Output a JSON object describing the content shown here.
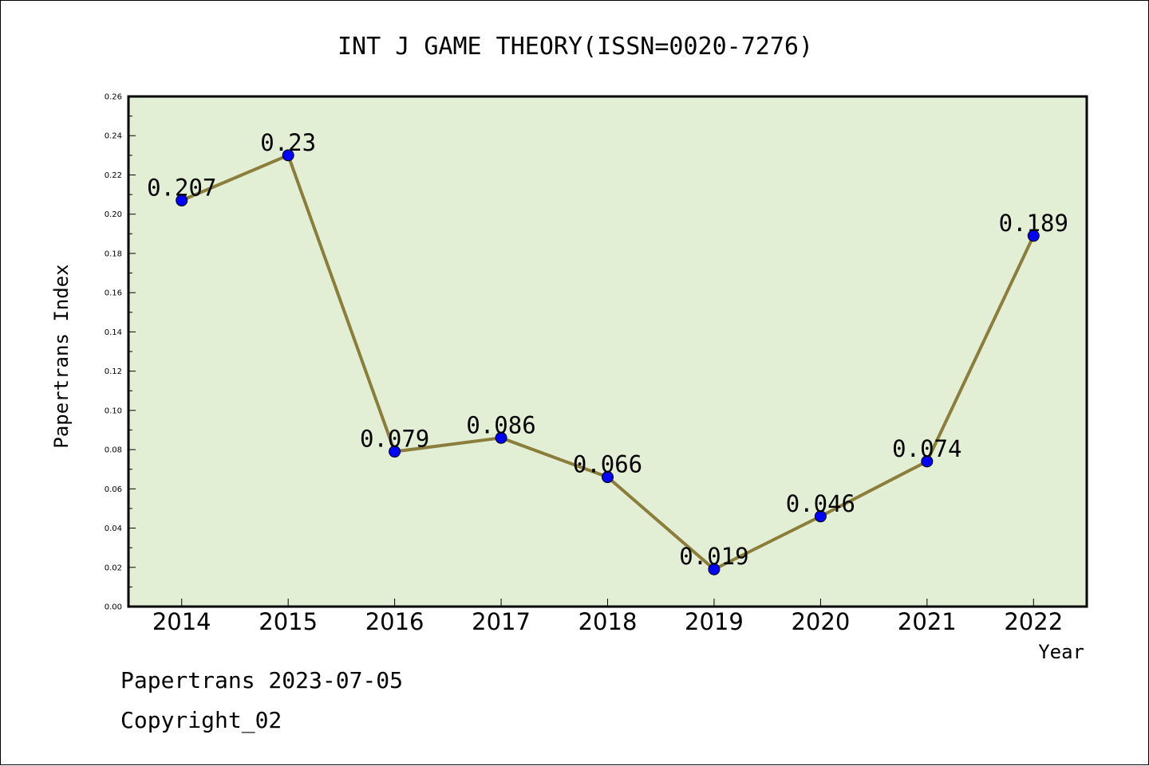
{
  "chart_data": {
    "type": "line",
    "title": "INT J GAME THEORY(ISSN=0020-7276)",
    "xlabel": "Year",
    "ylabel": "Papertrans Index",
    "categories": [
      "2014",
      "2015",
      "2016",
      "2017",
      "2018",
      "2019",
      "2020",
      "2021",
      "2022"
    ],
    "values": [
      0.207,
      0.23,
      0.079,
      0.086,
      0.066,
      0.019,
      0.046,
      0.074,
      0.189
    ],
    "value_labels": [
      "0.207",
      "0.23",
      "0.079",
      "0.086",
      "0.066",
      "0.019",
      "0.046",
      "0.074",
      "0.189"
    ],
    "ylim": [
      0,
      0.26
    ],
    "yticks": [
      "0.00",
      "0.02",
      "0.04",
      "0.06",
      "0.08",
      "0.10",
      "0.12",
      "0.14",
      "0.16",
      "0.18",
      "0.20",
      "0.22",
      "0.24",
      "0.26"
    ],
    "grid": false,
    "colors": {
      "plot_background": "#e2efd5",
      "line": "#8b7d3a",
      "marker": "#0000ff"
    }
  },
  "footer": {
    "date_line": "Papertrans 2023-07-05",
    "copyright_line": "Copyright_02"
  }
}
